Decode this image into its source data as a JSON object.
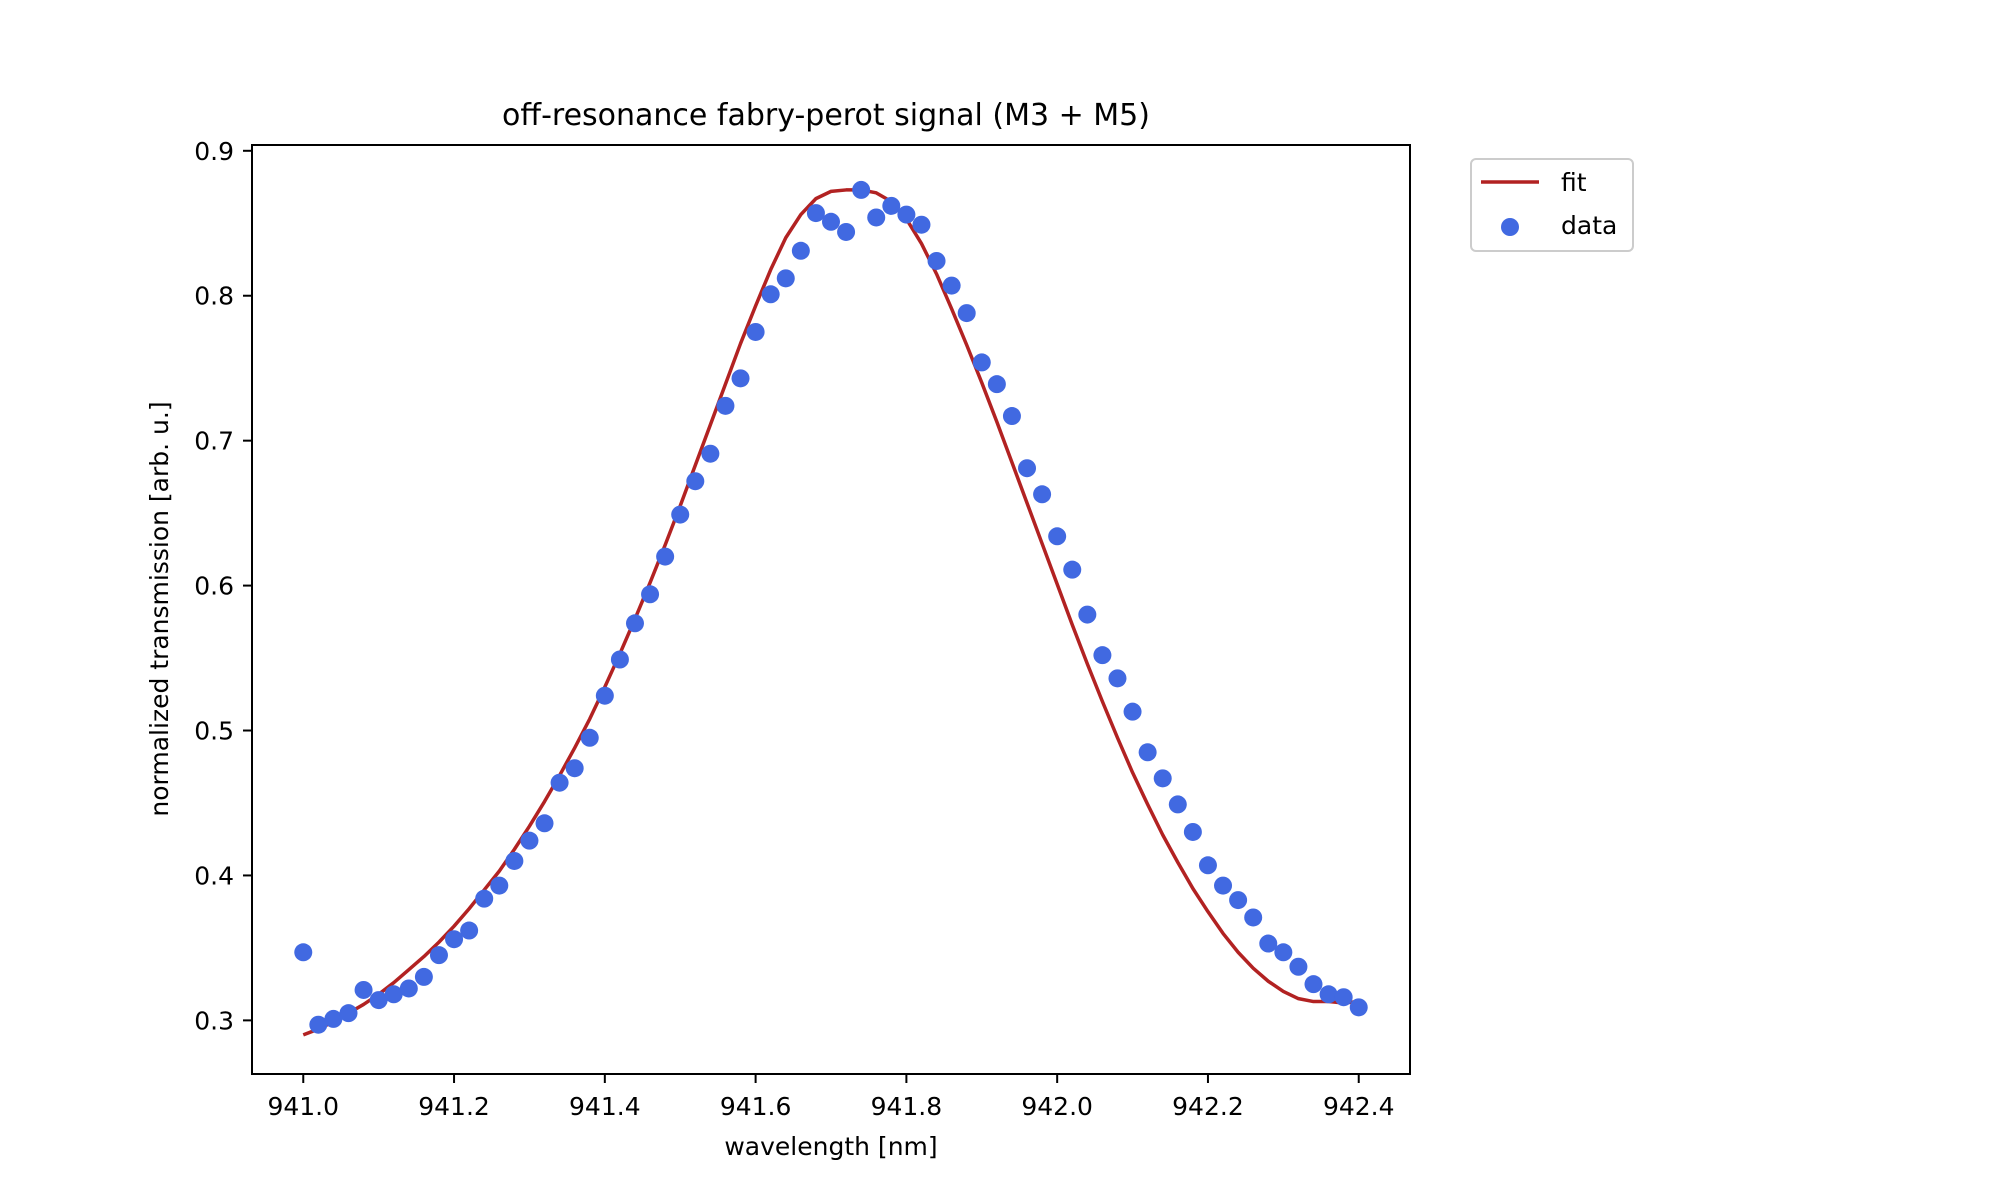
{
  "chart_data": {
    "type": "scatter",
    "title": "off-resonance fabry-perot signal (M3 + M5)",
    "xlabel": "wavelength [nm]",
    "ylabel": "normalized transmission [arb. u.]",
    "xlim": [
      940.932,
      942.468
    ],
    "ylim": [
      0.263,
      0.904
    ],
    "xticks": [
      941.0,
      941.2,
      941.4,
      941.6,
      941.8,
      942.0,
      942.2,
      942.4
    ],
    "xtick_labels": [
      "941.0",
      "941.2",
      "941.4",
      "941.6",
      "941.8",
      "942.0",
      "942.2",
      "942.4"
    ],
    "yticks": [
      0.3,
      0.4,
      0.5,
      0.6,
      0.7,
      0.8,
      0.9
    ],
    "ytick_labels": [
      "0.3",
      "0.4",
      "0.5",
      "0.6",
      "0.7",
      "0.8",
      "0.9"
    ],
    "grid": false,
    "legend_position": "outside-upper-right",
    "series": [
      {
        "name": "fit",
        "kind": "line",
        "color": "#b22222",
        "x": [
          941.0,
          941.02,
          941.04,
          941.06,
          941.08,
          941.1,
          941.12,
          941.14,
          941.16,
          941.18,
          941.2,
          941.22,
          941.24,
          941.26,
          941.28,
          941.3,
          941.32,
          941.34,
          941.36,
          941.38,
          941.4,
          941.42,
          941.44,
          941.46,
          941.48,
          941.5,
          941.52,
          941.54,
          941.56,
          941.58,
          941.6,
          941.62,
          941.64,
          941.66,
          941.68,
          941.7,
          941.72,
          941.74,
          941.76,
          941.78,
          941.8,
          941.82,
          941.84,
          941.86,
          941.88,
          941.9,
          941.92,
          941.94,
          941.96,
          941.98,
          942.0,
          942.02,
          942.04,
          942.06,
          942.08,
          942.1,
          942.12,
          942.14,
          942.16,
          942.18,
          942.2,
          942.22,
          942.24,
          942.26,
          942.28,
          942.3,
          942.32,
          942.34,
          942.36,
          942.38,
          942.4
        ],
        "y": [
          0.29,
          0.294,
          0.299,
          0.305,
          0.311,
          0.318,
          0.326,
          0.335,
          0.344,
          0.354,
          0.365,
          0.377,
          0.39,
          0.403,
          0.418,
          0.434,
          0.451,
          0.469,
          0.488,
          0.508,
          0.53,
          0.553,
          0.577,
          0.602,
          0.628,
          0.655,
          0.683,
          0.711,
          0.739,
          0.767,
          0.793,
          0.818,
          0.84,
          0.856,
          0.867,
          0.872,
          0.873,
          0.873,
          0.871,
          0.865,
          0.853,
          0.836,
          0.815,
          0.791,
          0.766,
          0.74,
          0.713,
          0.685,
          0.657,
          0.629,
          0.601,
          0.573,
          0.546,
          0.52,
          0.495,
          0.471,
          0.449,
          0.428,
          0.409,
          0.391,
          0.375,
          0.36,
          0.347,
          0.336,
          0.327,
          0.32,
          0.315,
          0.313,
          0.313,
          0.312,
          0.313
        ]
      },
      {
        "name": "data",
        "kind": "scatter",
        "color": "#4169e1",
        "x": [
          941.0,
          941.02,
          941.04,
          941.06,
          941.08,
          941.1,
          941.12,
          941.14,
          941.16,
          941.18,
          941.2,
          941.22,
          941.24,
          941.26,
          941.28,
          941.3,
          941.32,
          941.34,
          941.36,
          941.38,
          941.4,
          941.42,
          941.44,
          941.46,
          941.48,
          941.5,
          941.52,
          941.54,
          941.56,
          941.58,
          941.6,
          941.62,
          941.64,
          941.66,
          941.68,
          941.7,
          941.72,
          941.74,
          941.76,
          941.78,
          941.8,
          941.82,
          941.84,
          941.86,
          941.88,
          941.9,
          941.92,
          941.94,
          941.96,
          941.98,
          942.0,
          942.02,
          942.04,
          942.06,
          942.08,
          942.1,
          942.12,
          942.14,
          942.16,
          942.18,
          942.2,
          942.22,
          942.24,
          942.26,
          942.28,
          942.3,
          942.32,
          942.34,
          942.36,
          942.38,
          942.4
        ],
        "y": [
          0.347,
          0.297,
          0.301,
          0.305,
          0.321,
          0.314,
          0.318,
          0.322,
          0.33,
          0.345,
          0.356,
          0.362,
          0.384,
          0.393,
          0.41,
          0.424,
          0.436,
          0.464,
          0.474,
          0.495,
          0.524,
          0.549,
          0.574,
          0.594,
          0.62,
          0.649,
          0.672,
          0.691,
          0.724,
          0.743,
          0.775,
          0.801,
          0.812,
          0.831,
          0.857,
          0.851,
          0.844,
          0.873,
          0.854,
          0.862,
          0.856,
          0.849,
          0.824,
          0.807,
          0.788,
          0.754,
          0.739,
          0.717,
          0.681,
          0.663,
          0.634,
          0.611,
          0.58,
          0.552,
          0.536,
          0.513,
          0.485,
          0.467,
          0.449,
          0.43,
          0.407,
          0.393,
          0.383,
          0.371,
          0.353,
          0.347,
          0.337,
          0.325,
          0.318,
          0.316,
          0.309
        ]
      }
    ]
  }
}
